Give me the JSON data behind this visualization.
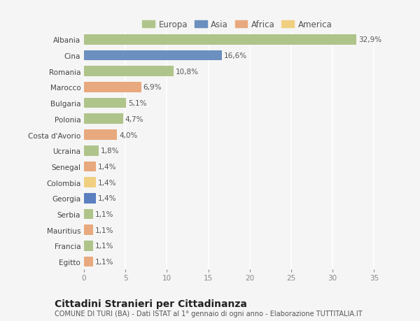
{
  "countries": [
    "Albania",
    "Cina",
    "Romania",
    "Marocco",
    "Bulgaria",
    "Polonia",
    "Costa d'Avorio",
    "Ucraina",
    "Senegal",
    "Colombia",
    "Georgia",
    "Serbia",
    "Mauritius",
    "Francia",
    "Egitto"
  ],
  "values": [
    32.9,
    16.6,
    10.8,
    6.9,
    5.1,
    4.7,
    4.0,
    1.8,
    1.4,
    1.4,
    1.4,
    1.1,
    1.1,
    1.1,
    1.1
  ],
  "labels": [
    "32,9%",
    "16,6%",
    "10,8%",
    "6,9%",
    "5,1%",
    "4,7%",
    "4,0%",
    "1,8%",
    "1,4%",
    "1,4%",
    "1,4%",
    "1,1%",
    "1,1%",
    "1,1%",
    "1,1%"
  ],
  "colors": [
    "#afc48a",
    "#6b8fbf",
    "#afc48a",
    "#e8a97e",
    "#afc48a",
    "#afc48a",
    "#e8a97e",
    "#afc48a",
    "#e8a97e",
    "#f0d080",
    "#5b7fbf",
    "#afc48a",
    "#e8a97e",
    "#afc48a",
    "#e8a97e"
  ],
  "legend_labels": [
    "Europa",
    "Asia",
    "Africa",
    "America"
  ],
  "legend_colors": [
    "#afc48a",
    "#6b8fbf",
    "#e8a97e",
    "#f0d080"
  ],
  "xlim": [
    0,
    37
  ],
  "xticks": [
    0,
    5,
    10,
    15,
    20,
    25,
    30,
    35
  ],
  "title": "Cittadini Stranieri per Cittadinanza",
  "subtitle": "COMUNE DI TURI (BA) - Dati ISTAT al 1° gennaio di ogni anno - Elaborazione TUTTITALIA.IT",
  "background_color": "#f5f5f5",
  "grid_color": "#ffffff",
  "bar_height": 0.65,
  "label_fontsize": 7.5,
  "tick_fontsize": 7.5,
  "title_fontsize": 10,
  "subtitle_fontsize": 7,
  "legend_fontsize": 8.5
}
